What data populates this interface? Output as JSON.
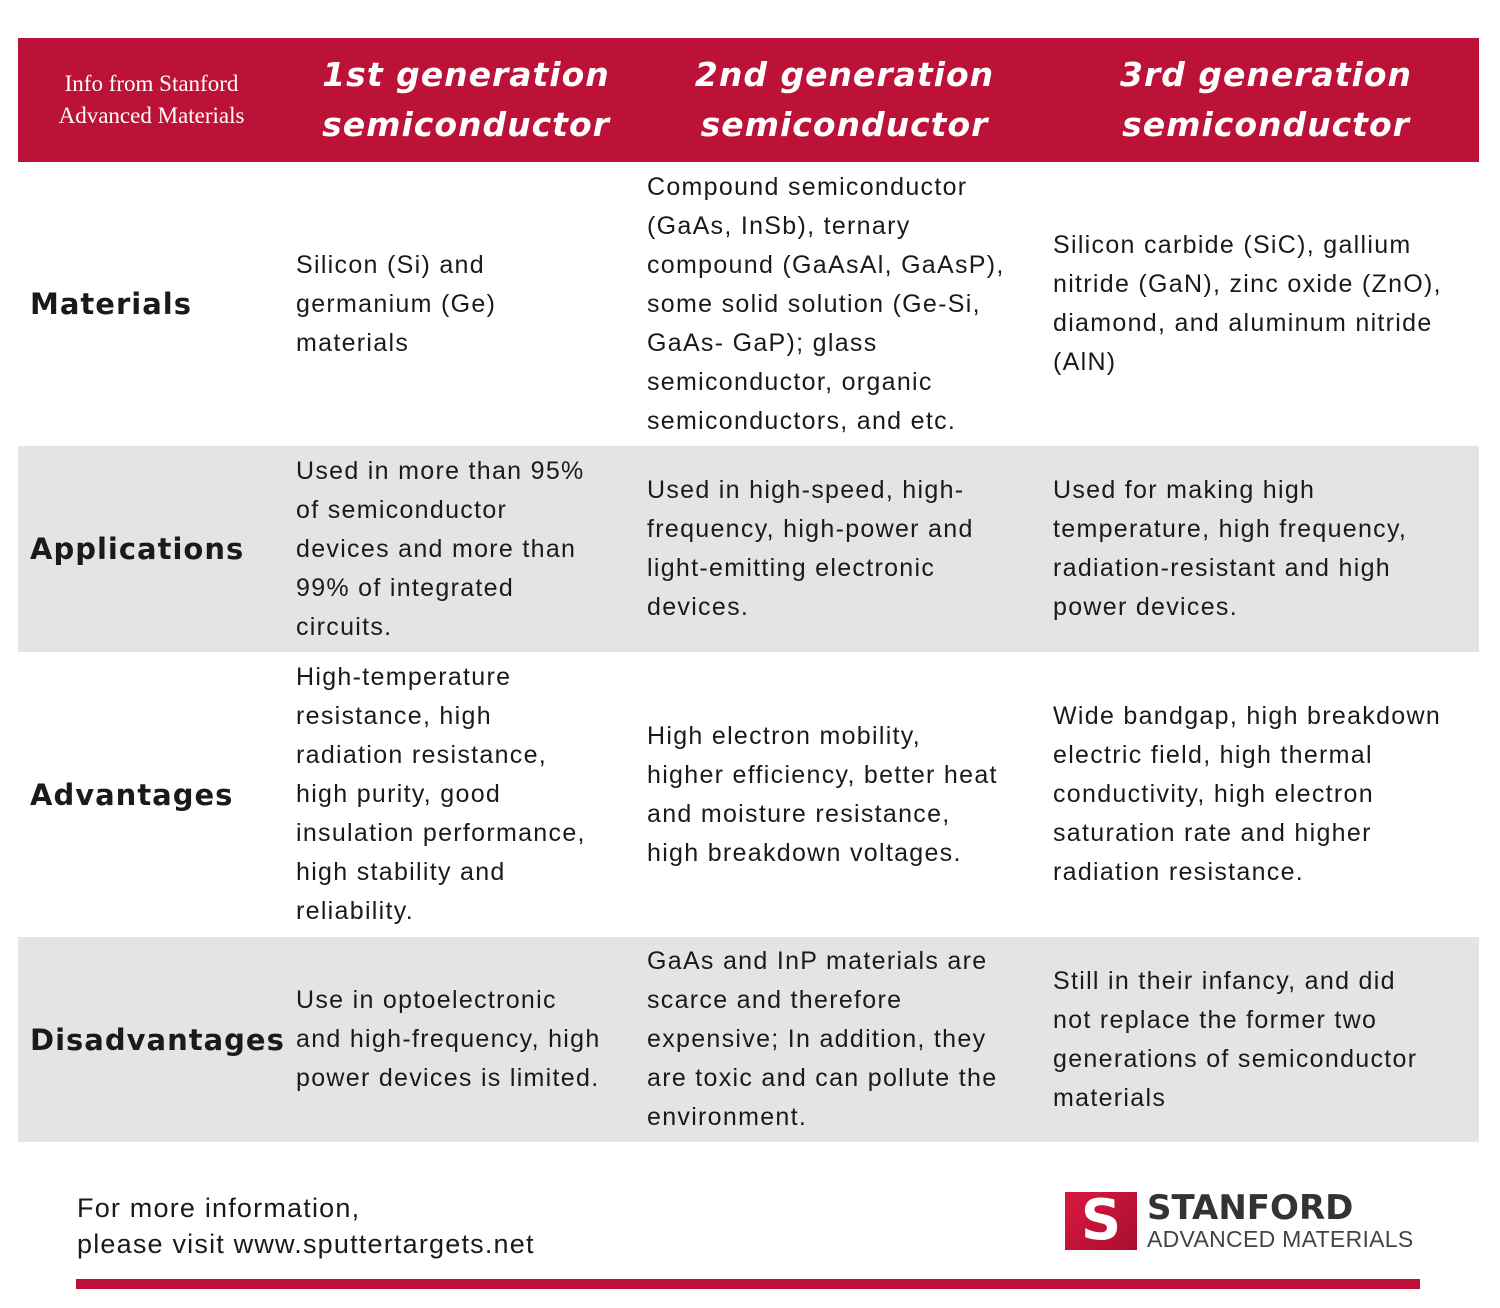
{
  "header": {
    "source": "Info from Stanford\nAdvanced Materials",
    "columns": [
      "1st generation\nsemiconductor",
      "2nd generation\nsemiconductor",
      "3rd generation\nsemiconductor"
    ]
  },
  "rows": [
    {
      "label": "Materials",
      "cells": [
        "Silicon (Si) and\ngermanium (Ge)\nmaterials",
        "Compound semiconductor\n(GaAs, InSb), ternary\ncompound (GaAsAl, GaAsP),\nsome solid solution (Ge-Si,\nGaAs- GaP); glass\nsemiconductor, organic\nsemiconductors, and etc.",
        "Silicon carbide (SiC), gallium\nnitride (GaN), zinc oxide (ZnO),\ndiamond, and aluminum nitride\n(AlN)"
      ]
    },
    {
      "label": "Applications",
      "cells": [
        "Used in more than 95%\nof semiconductor\ndevices and more than\n99% of integrated\ncircuits.",
        "Used in high-speed, high-\nfrequency, high-power and\nlight-emitting electronic\ndevices.",
        "Used for making high\ntemperature, high frequency,\nradiation-resistant and high\npower devices."
      ]
    },
    {
      "label": "Advantages",
      "cells": [
        "High-temperature\nresistance, high\nradiation resistance,\nhigh purity, good\ninsulation performance,\nhigh stability and\nreliability.",
        "High electron mobility,\nhigher efficiency, better heat\nand moisture resistance,\nhigh breakdown voltages.",
        "Wide bandgap, high breakdown\nelectric field, high thermal\nconductivity, high electron\nsaturation rate and higher\nradiation resistance."
      ]
    },
    {
      "label": "Disadvantages",
      "cells": [
        "Use in optoelectronic\nand high-frequency, high\npower devices is limited.",
        "GaAs and InP materials are\nscarce and therefore\nexpensive; In addition, they\nare toxic and can pollute the\nenvironment.",
        "Still in their infancy, and did\nnot replace the former two\ngenerations of semiconductor\nmaterials"
      ]
    }
  ],
  "footer": {
    "text": "For more information,\nplease visit www.sputtertargets.net",
    "logo": {
      "letter": "S",
      "line1": "STANFORD",
      "line2": "ADVANCED MATERIALS"
    }
  },
  "colors": {
    "accent": "#bd1238",
    "row_shade": "#e4e4e4"
  }
}
